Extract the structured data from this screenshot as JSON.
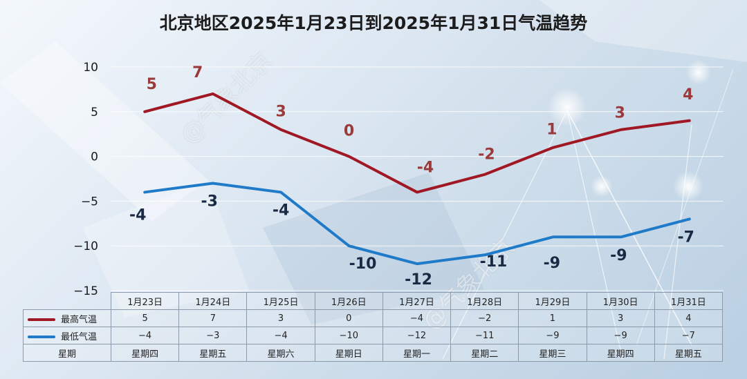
{
  "title": "北京地区2025年1月23日到2025年1月31日气温趋势",
  "watermark": "@气象北京",
  "chart_data": {
    "type": "line",
    "categories": [
      "1月23日",
      "1月24日",
      "1月25日",
      "1月26日",
      "1月27日",
      "1月28日",
      "1月29日",
      "1月30日",
      "1月31日"
    ],
    "weekdays": [
      "星期四",
      "星期五",
      "星期六",
      "星期日",
      "星期一",
      "星期二",
      "星期三",
      "星期四",
      "星期五"
    ],
    "series": [
      {
        "name": "最高气温",
        "values": [
          5,
          7,
          3,
          0,
          -4,
          -2,
          1,
          3,
          4
        ],
        "color": "#a01824",
        "label_color": "#9b3a3a"
      },
      {
        "name": "最低气温",
        "values": [
          -4,
          -3,
          -4,
          -10,
          -12,
          -11,
          -9,
          -9,
          -7
        ],
        "color": "#1f7ac8",
        "label_color": "#1a2a44"
      }
    ],
    "table_values": {
      "high": [
        "5",
        "7",
        "3",
        "0",
        "−4",
        "−2",
        "1",
        "3",
        "4"
      ],
      "low": [
        "−4",
        "−3",
        "−4",
        "−10",
        "−12",
        "−11",
        "−9",
        "−9",
        "−7"
      ]
    },
    "y_ticks": [
      10,
      5,
      0,
      -5,
      -10,
      -15
    ],
    "y_tick_labels": [
      "10",
      "5",
      "0",
      "−5",
      "−10",
      "−15"
    ],
    "ylim": [
      -15,
      10
    ],
    "grid": true,
    "legend": "data-table",
    "row_label_weekday": "星期"
  }
}
